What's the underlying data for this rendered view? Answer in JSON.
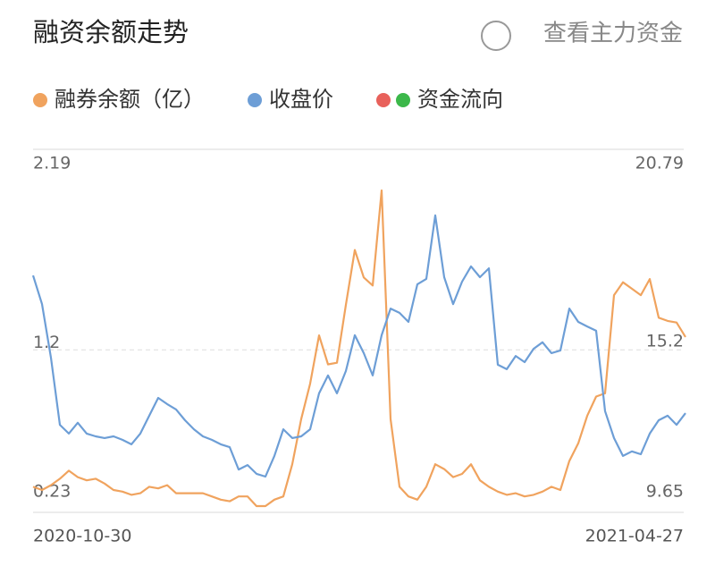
{
  "chart_data": {
    "type": "line",
    "title": "融资余额走势",
    "toggle_label": "查看主力资金",
    "categories": [
      "2020-10-30",
      null,
      null,
      null,
      null,
      null,
      null,
      null,
      null,
      null,
      null,
      null,
      null,
      null,
      null,
      null,
      null,
      null,
      null,
      null,
      null,
      null,
      null,
      null,
      null,
      null,
      null,
      null,
      null,
      null,
      null,
      null,
      null,
      null,
      null,
      null,
      null,
      null,
      null,
      null,
      null,
      null,
      null,
      null,
      null,
      null,
      null,
      null,
      null,
      null,
      null,
      null,
      null,
      null,
      null,
      null,
      null,
      null,
      null,
      null,
      null,
      null,
      null,
      null,
      null,
      null,
      null,
      null,
      null,
      null,
      null,
      null,
      null,
      "2021-04-27"
    ],
    "series": [
      {
        "name": "融券余额（亿）",
        "color": "#f0a35e",
        "axis": "y",
        "values": [
          0.35,
          0.33,
          0.36,
          0.4,
          0.45,
          0.41,
          0.39,
          0.4,
          0.37,
          0.33,
          0.32,
          0.3,
          0.31,
          0.35,
          0.34,
          0.36,
          0.31,
          0.31,
          0.31,
          0.31,
          0.29,
          0.27,
          0.26,
          0.29,
          0.29,
          0.23,
          0.23,
          0.27,
          0.29,
          0.49,
          0.77,
          0.99,
          1.29,
          1.11,
          1.12,
          1.48,
          1.82,
          1.65,
          1.6,
          2.19,
          0.77,
          0.35,
          0.29,
          0.27,
          0.35,
          0.49,
          0.46,
          0.41,
          0.43,
          0.49,
          0.39,
          0.35,
          0.32,
          0.3,
          0.31,
          0.29,
          0.3,
          0.32,
          0.35,
          0.33,
          0.51,
          0.62,
          0.79,
          0.91,
          0.93,
          1.54,
          1.62,
          1.58,
          1.54,
          1.64,
          1.4,
          1.38,
          1.37,
          1.28
        ]
      },
      {
        "name": "收盘价",
        "color": "#6d9ed6",
        "axis": "y2",
        "values": [
          17.79,
          16.78,
          14.89,
          12.52,
          12.21,
          12.59,
          12.21,
          12.11,
          12.05,
          12.11,
          11.99,
          11.83,
          12.21,
          12.84,
          13.47,
          13.25,
          13.06,
          12.68,
          12.36,
          12.11,
          11.99,
          11.83,
          11.73,
          10.94,
          11.1,
          10.79,
          10.69,
          11.42,
          12.36,
          12.05,
          12.11,
          12.36,
          13.63,
          14.26,
          13.63,
          14.42,
          15.68,
          15.05,
          14.26,
          15.68,
          16.62,
          16.47,
          16.15,
          17.48,
          17.67,
          19.91,
          17.73,
          16.78,
          17.57,
          18.11,
          17.73,
          18.04,
          14.64,
          14.48,
          14.95,
          14.73,
          15.2,
          15.43,
          15.05,
          15.14,
          16.62,
          16.15,
          15.99,
          15.84,
          13.0,
          12.05,
          11.42,
          11.58,
          11.48,
          12.21,
          12.68,
          12.84,
          12.52,
          12.93
        ]
      }
    ],
    "flow_legend": {
      "name": "资金流向",
      "colors": [
        "#e8615b",
        "#3cb84a"
      ]
    },
    "ylim": [
      0.23,
      2.19
    ],
    "yticks": [
      0.23,
      1.2,
      2.19
    ],
    "y2lim": [
      9.65,
      20.79
    ],
    "y2ticks": [
      9.65,
      15.2,
      20.79
    ],
    "grid": true
  }
}
